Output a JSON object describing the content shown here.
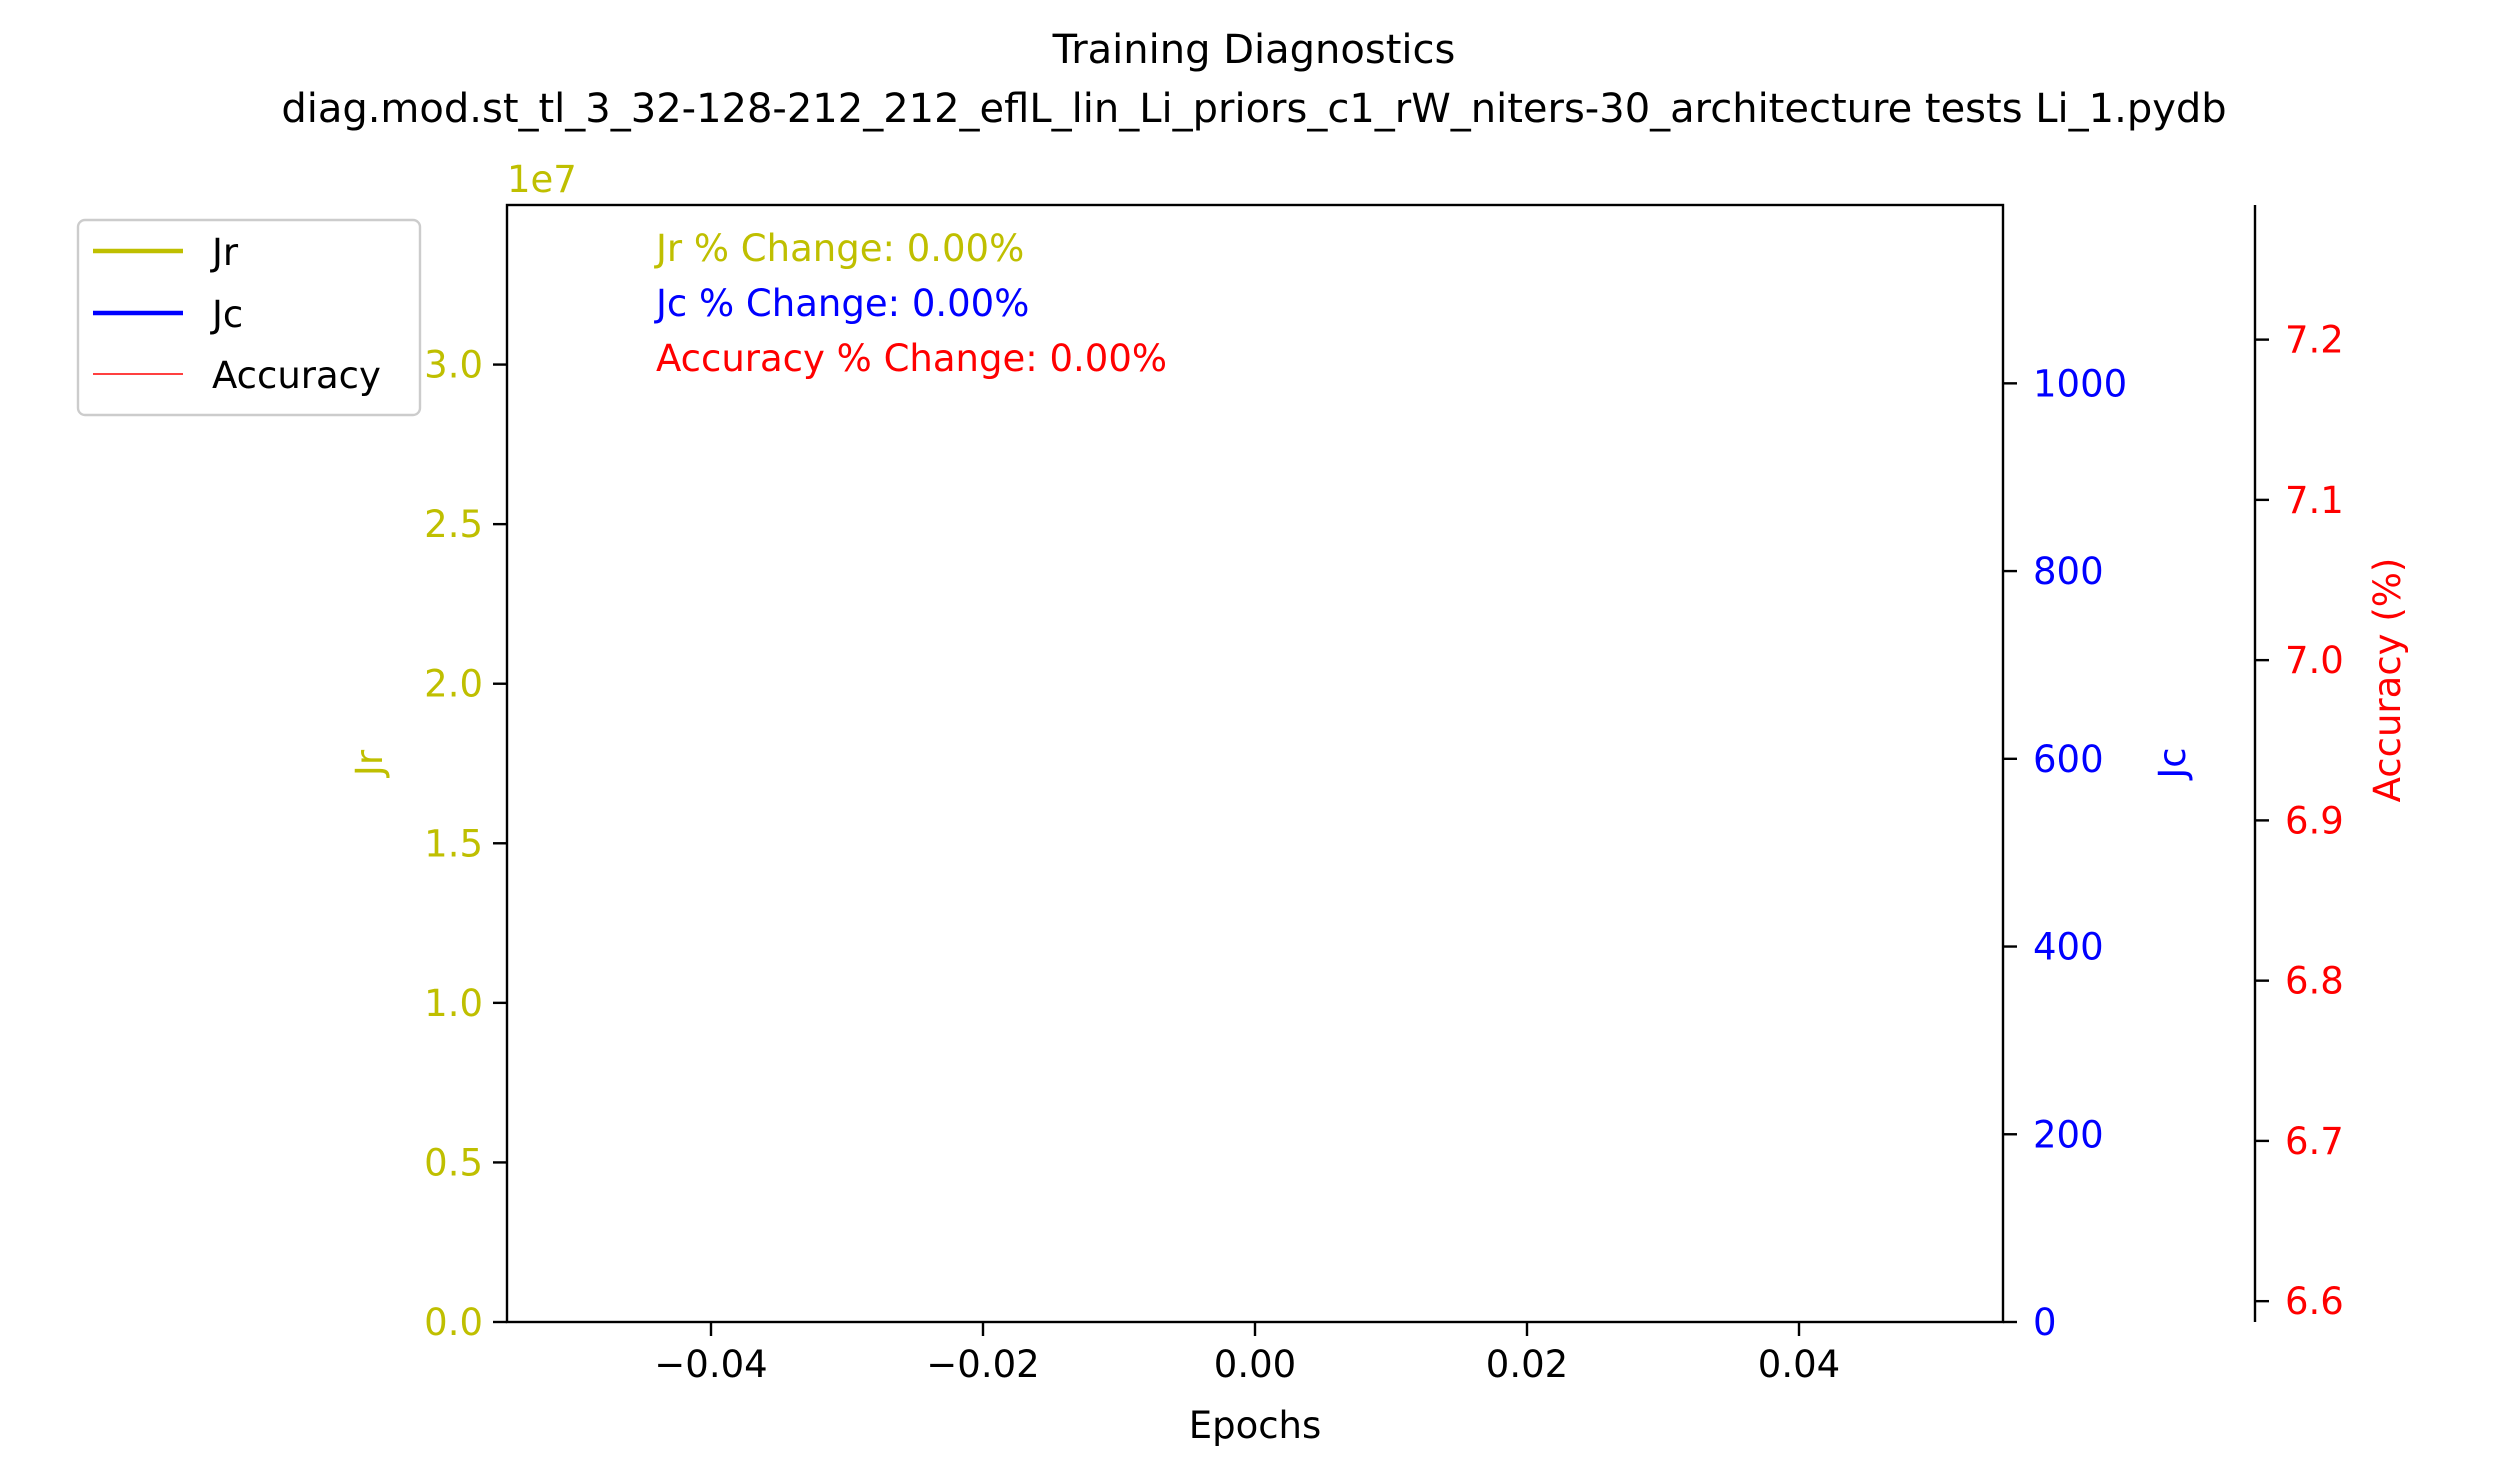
{
  "title": "Training Diagnostics",
  "subtitle": "diag.mod.st_tl_3_32-128-212_212_eflL_lin_Li_priors_c1_rW_niters-30_architecture tests Li_1.pydb",
  "colors": {
    "jr": "#bfbf00",
    "jc": "#0000ff",
    "accuracy": "#ff0000",
    "axis": "#000000"
  },
  "chart_data": {
    "type": "line",
    "xlabel": "Epochs",
    "xlim": [
      -0.055,
      0.055
    ],
    "x_ticks": [
      "−0.04",
      "−0.02",
      "0.00",
      "0.02",
      "0.04"
    ],
    "x_tick_values": [
      -0.04,
      -0.02,
      0.0,
      0.02,
      0.04
    ],
    "axes": {
      "jr": {
        "label": "Jr",
        "ylim": [
          0,
          35000000
        ],
        "offset_label": "1e7",
        "ticks": [
          "0.0",
          "0.5",
          "1.0",
          "1.5",
          "2.0",
          "2.5",
          "3.0"
        ],
        "tick_values": [
          0,
          5000000,
          10000000,
          15000000,
          20000000,
          25000000,
          30000000
        ]
      },
      "jc": {
        "label": "Jc",
        "ylim": [
          0,
          1190
        ],
        "ticks": [
          "0",
          "200",
          "400",
          "600",
          "800",
          "1000"
        ],
        "tick_values": [
          0,
          200,
          400,
          600,
          800,
          1000
        ]
      },
      "accuracy": {
        "label": "Accuracy (%)",
        "ylim": [
          6.587,
          7.284
        ],
        "ticks": [
          "6.6",
          "6.7",
          "6.8",
          "6.9",
          "7.0",
          "7.1",
          "7.2"
        ],
        "tick_values": [
          6.6,
          6.7,
          6.8,
          6.9,
          7.0,
          7.1,
          7.2
        ]
      }
    },
    "series": [
      {
        "name": "Jr",
        "x": [],
        "y": []
      },
      {
        "name": "Jc",
        "x": [],
        "y": []
      },
      {
        "name": "Accuracy",
        "x": [],
        "y": []
      }
    ],
    "annotations": [
      "Jr % Change: 0.00%",
      "Jc % Change: 0.00%",
      "Accuracy % Change: 0.00%"
    ],
    "legend": {
      "placement": "upper-left outside",
      "entries": [
        "Jr",
        "Jc",
        "Accuracy"
      ]
    }
  }
}
